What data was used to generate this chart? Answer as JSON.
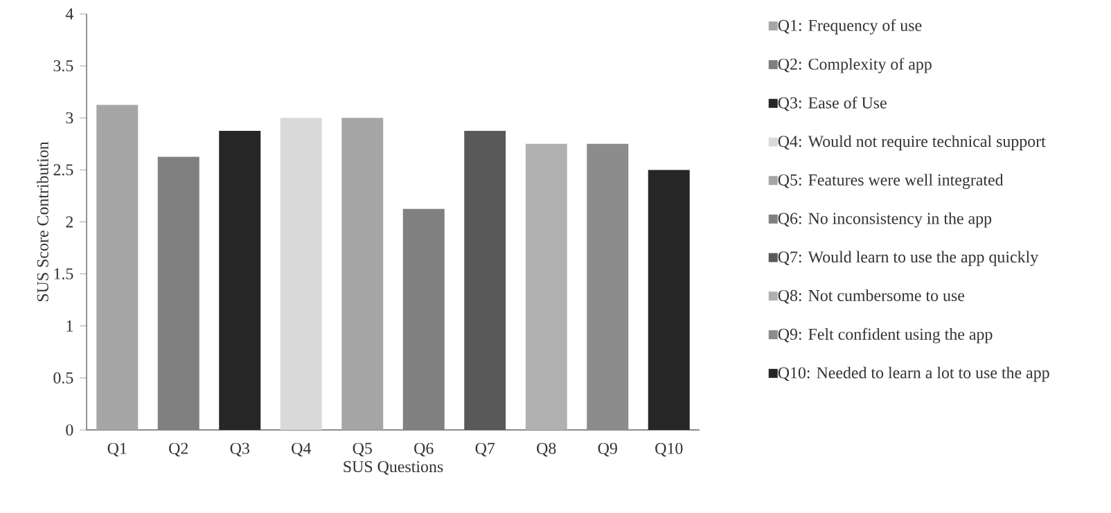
{
  "chart_data": {
    "type": "bar",
    "xlabel": "SUS Questions",
    "ylabel": "SUS Score Contribution",
    "categories": [
      "Q1",
      "Q2",
      "Q3",
      "Q4",
      "Q5",
      "Q6",
      "Q7",
      "Q8",
      "Q9",
      "Q10"
    ],
    "series": [
      {
        "name": "Q1: Frequency of use",
        "color": "#a6a6a6",
        "values": [
          3.125,
          null,
          null,
          null,
          null,
          null,
          null,
          null,
          null,
          null
        ]
      },
      {
        "name": "Q2: Complexity of app",
        "color": "#808080",
        "values": [
          null,
          2.625,
          null,
          null,
          null,
          null,
          null,
          null,
          null,
          null
        ]
      },
      {
        "name": "Q3: Ease of Use",
        "color": "#262626",
        "values": [
          null,
          null,
          2.875,
          null,
          null,
          null,
          null,
          null,
          null,
          null
        ]
      },
      {
        "name": "Q4: Would not require technical support",
        "color": "#d9d9d9",
        "values": [
          null,
          null,
          null,
          3.0,
          null,
          null,
          null,
          null,
          null,
          null
        ]
      },
      {
        "name": "Q5: Features were well integrated",
        "color": "#a6a6a6",
        "values": [
          null,
          null,
          null,
          null,
          3.0,
          null,
          null,
          null,
          null,
          null
        ]
      },
      {
        "name": "Q6: No inconsistency in the app",
        "color": "#808080",
        "values": [
          null,
          null,
          null,
          null,
          null,
          2.125,
          null,
          null,
          null,
          null
        ]
      },
      {
        "name": "Q7: Would learn to use the app quickly",
        "color": "#595959",
        "values": [
          null,
          null,
          null,
          null,
          null,
          null,
          2.875,
          null,
          null,
          null
        ]
      },
      {
        "name": "Q8: Not cumbersome to use",
        "color": "#b0b0b0",
        "values": [
          null,
          null,
          null,
          null,
          null,
          null,
          null,
          2.75,
          null,
          null
        ]
      },
      {
        "name": "Q9: Felt confident using the app",
        "color": "#8c8c8c",
        "values": [
          null,
          null,
          null,
          null,
          null,
          null,
          null,
          null,
          2.75,
          null
        ]
      },
      {
        "name": "Q10: Needed to learn a lot to use the app",
        "color": "#262626",
        "values": [
          null,
          null,
          null,
          null,
          null,
          null,
          null,
          null,
          null,
          2.5
        ]
      }
    ],
    "ylim": [
      0,
      4
    ],
    "yticks": [
      0,
      0.5,
      1,
      1.5,
      2,
      2.5,
      3,
      3.5,
      4
    ],
    "grid": false,
    "legend": "right"
  }
}
